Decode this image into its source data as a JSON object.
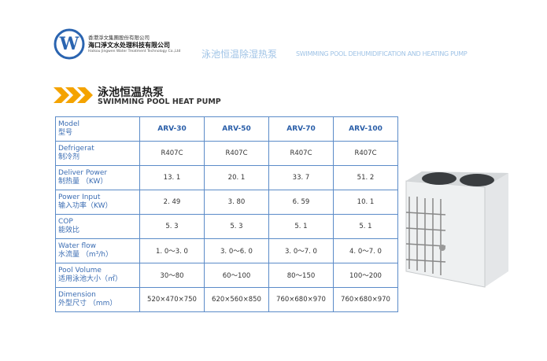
{
  "header": {
    "company_cn": "香港淨文集團股份有限公司",
    "company_cn2": "海口淨文水处理科技有限公司",
    "company_en": "Haikou Jingwen Water Treatment Technology Co.,Ltd",
    "tagline_cn": "泳池恒温除湿热泵",
    "tagline_en": "SWIMMING POOL DEHUMIDIFICATION AND HEATING PUMP"
  },
  "section": {
    "title_cn": "泳池恒温热泵",
    "title_en": "SWIMMING POOL HEAT PUMP"
  },
  "table": {
    "rows": [
      {
        "en": "Model",
        "cn": "型号",
        "cells": [
          "ARV-30",
          "ARV-50",
          "ARV-70",
          "ARV-100"
        ]
      },
      {
        "en": "Defrigerat",
        "cn": "制冷剂",
        "cells": [
          "R407C",
          "R407C",
          "R407C",
          "R407C"
        ]
      },
      {
        "en": "Deliver   Power",
        "cn": "制热量  （KW）",
        "cells": [
          "13. 1",
          "20. 1",
          "33. 7",
          "51. 2"
        ]
      },
      {
        "en": "Power Input",
        "cn": "输入功率（KW）",
        "cells": [
          "2. 49",
          "3. 80",
          "6. 59",
          "10. 1"
        ]
      },
      {
        "en": "COP",
        "cn": "能效比",
        "cells": [
          "5. 3",
          "5. 3",
          "5. 1",
          "5. 1"
        ]
      },
      {
        "en": "Water  flow",
        "cn": "水流量  （m³/h）",
        "cells": [
          "1. 0～3. 0",
          "3. 0～6. 0",
          "3. 0～7. 0",
          "4. 0～7. 0"
        ]
      },
      {
        "en": "Pool  Volume",
        "cn": "适用泳池大小（㎡）",
        "cells": [
          "30～80",
          "60～100",
          "80～150",
          "100～200"
        ]
      },
      {
        "en": "Dimension",
        "cn": "外型尺寸   （mm）",
        "cells": [
          "520×470×750",
          "620×560×850",
          "760×680×970",
          "760×680×970"
        ]
      }
    ]
  }
}
